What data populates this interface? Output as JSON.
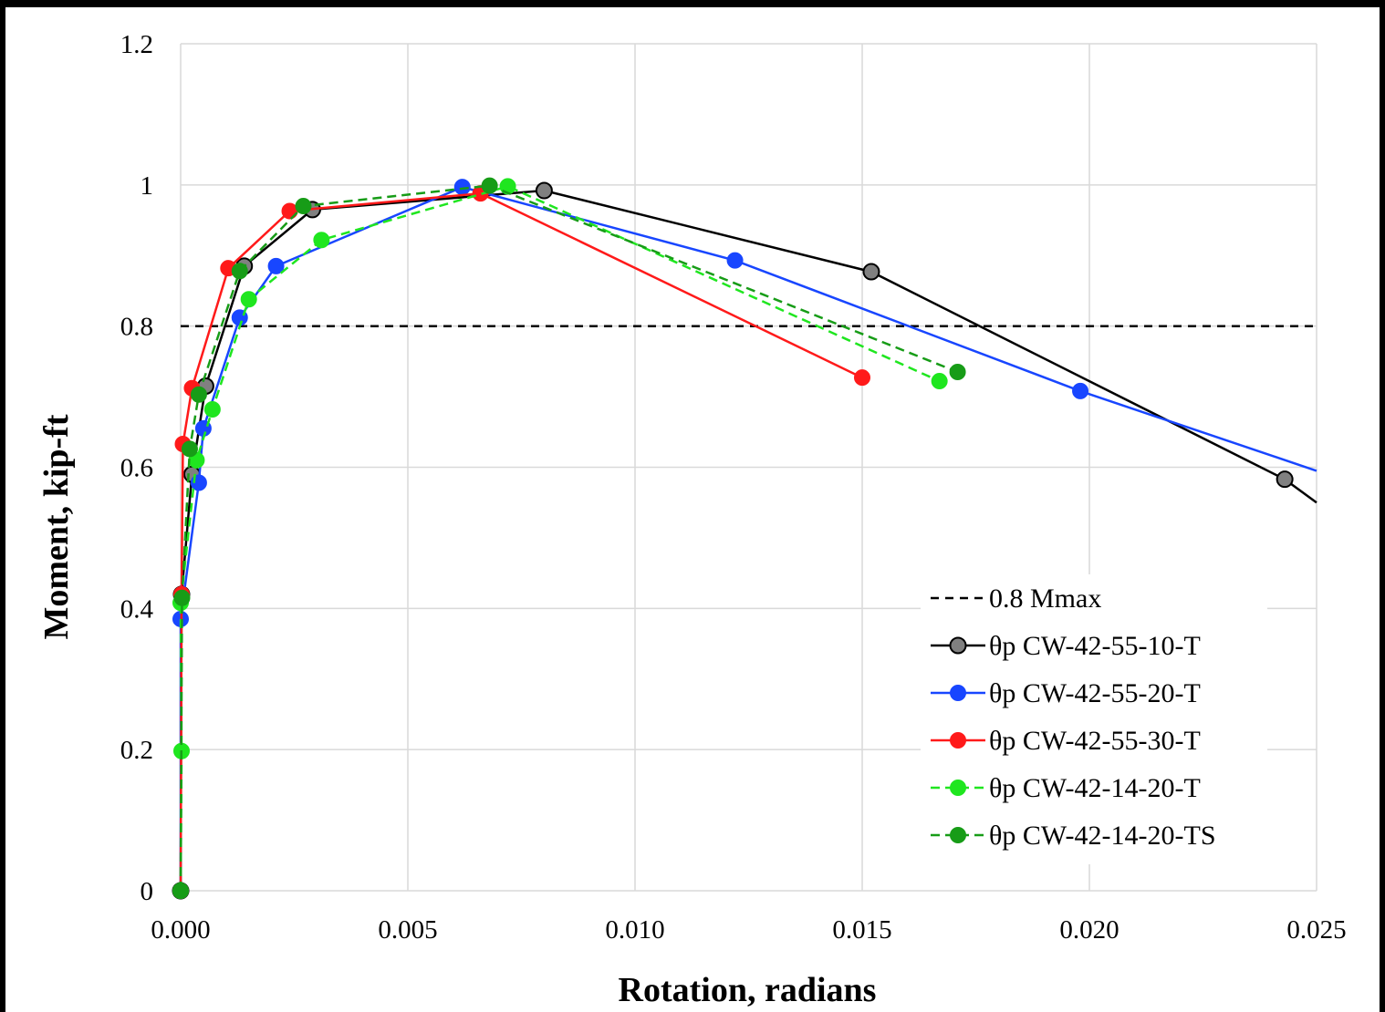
{
  "chart_data": {
    "type": "line",
    "xlabel": "Rotation, radians",
    "ylabel": "Moment, kip-ft",
    "xlim": [
      0,
      0.025
    ],
    "ylim": [
      0,
      1.2
    ],
    "x_ticks": [
      "0.000",
      "0.005",
      "0.010",
      "0.015",
      "0.020",
      "0.025"
    ],
    "y_ticks": [
      "0",
      "0.2",
      "0.4",
      "0.6",
      "0.8",
      "1",
      "1.2"
    ],
    "grid": true,
    "legend_position": "bottom-right",
    "series": [
      {
        "name": "0.8 Mmax",
        "color": "#000000",
        "dashed": true,
        "marker": false,
        "points": [
          [
            0,
            0.8
          ],
          [
            0.025,
            0.8
          ]
        ]
      },
      {
        "name": "θp CW-42-55-10-T",
        "color": "#000000",
        "marker_color": "#808080",
        "dashed": false,
        "marker": true,
        "points": [
          [
            0,
            0
          ],
          [
            2e-05,
            0.42
          ],
          [
            0.00025,
            0.59
          ],
          [
            0.00055,
            0.715
          ],
          [
            0.0014,
            0.885
          ],
          [
            0.0029,
            0.965
          ],
          [
            0.008,
            0.992
          ],
          [
            0.0152,
            0.877
          ],
          [
            0.0243,
            0.583
          ],
          [
            0.025,
            0.55
          ]
        ],
        "markers_hidden_after": 8
      },
      {
        "name": "θp CW-42-55-20-T",
        "color": "#1846ff",
        "marker_color": "#1846ff",
        "dashed": false,
        "marker": true,
        "points": [
          [
            0,
            0
          ],
          [
            0,
            0.385
          ],
          [
            0.0004,
            0.578
          ],
          [
            0.0005,
            0.655
          ],
          [
            0.0013,
            0.812
          ],
          [
            0.0021,
            0.885
          ],
          [
            0.0062,
            0.997
          ],
          [
            0.0122,
            0.893
          ],
          [
            0.0198,
            0.708
          ],
          [
            0.025,
            0.595
          ]
        ],
        "markers_hidden_after": 8
      },
      {
        "name": "θp CW-42-55-30-T",
        "color": "#ff1a1a",
        "marker_color": "#ff1a1a",
        "dashed": false,
        "marker": true,
        "points": [
          [
            0,
            0
          ],
          [
            2e-05,
            0.42
          ],
          [
            5e-05,
            0.633
          ],
          [
            0.00025,
            0.712
          ],
          [
            0.00105,
            0.882
          ],
          [
            0.0024,
            0.963
          ],
          [
            0.0066,
            0.988
          ],
          [
            0.015,
            0.727
          ]
        ],
        "markers_hidden_after": 7
      },
      {
        "name": "θp CW-42-14-20-T",
        "color": "#1fe61f",
        "marker_color": "#1fe61f",
        "dashed": true,
        "marker": true,
        "points": [
          [
            0,
            0
          ],
          [
            2e-05,
            0.198
          ],
          [
            0,
            0.408
          ],
          [
            0.00035,
            0.61
          ],
          [
            0.0007,
            0.682
          ],
          [
            0.0015,
            0.838
          ],
          [
            0.0031,
            0.922
          ],
          [
            0.0072,
            0.998
          ],
          [
            0.0167,
            0.722
          ]
        ],
        "markers_hidden_after": 8
      },
      {
        "name": "θp CW-42-14-20-TS",
        "color": "#179c17",
        "marker_color": "#179c17",
        "dashed": true,
        "marker": true,
        "points": [
          [
            0,
            0
          ],
          [
            3e-05,
            0.415
          ],
          [
            0.0002,
            0.626
          ],
          [
            0.0004,
            0.703
          ],
          [
            0.0013,
            0.878
          ],
          [
            0.0027,
            0.97
          ],
          [
            0.0068,
            0.999
          ],
          [
            0.0171,
            0.735
          ]
        ],
        "markers_hidden_after": 7
      }
    ]
  }
}
